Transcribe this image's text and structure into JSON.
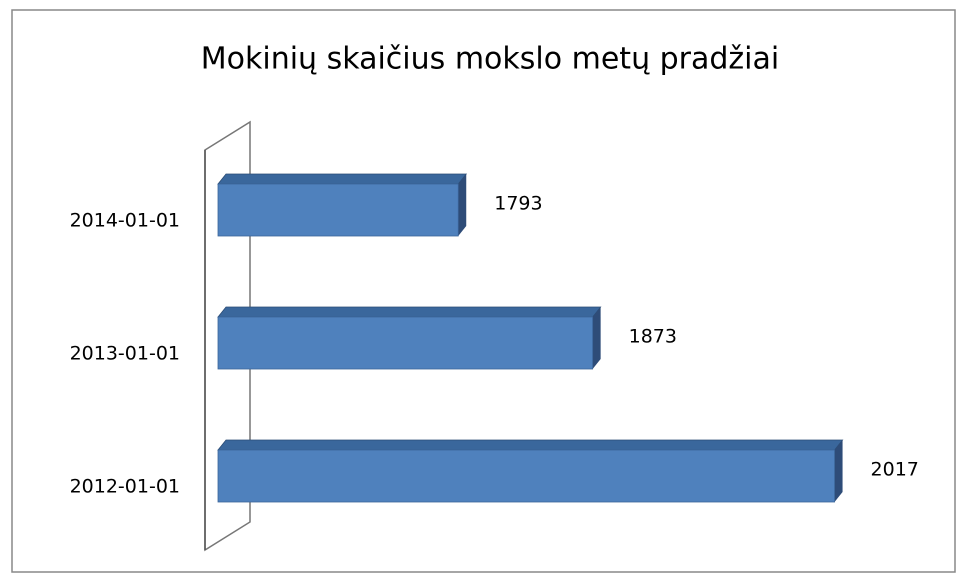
{
  "chart_data": {
    "type": "bar3d_horizontal",
    "title": "Mokinių skaičius mokslo metų pradžiai",
    "categories": [
      "2014-01-01",
      "2013-01-01",
      "2012-01-01"
    ],
    "values": [
      1793,
      1873,
      2017
    ],
    "color": "#4f81bd",
    "xlim": [
      1650,
      2050
    ]
  }
}
